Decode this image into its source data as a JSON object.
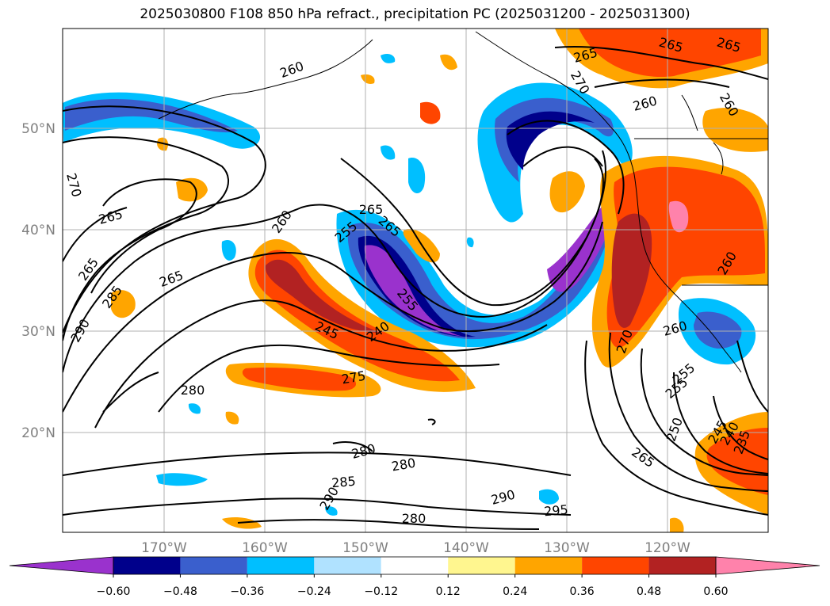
{
  "title": "2025030800 F108 850 hPa refract., precipitation PC (2025031200 - 2025031300)",
  "map": {
    "lat_ticks": [
      "50°N",
      "40°N",
      "30°N",
      "20°N"
    ],
    "lon_ticks": [
      "170°W",
      "160°W",
      "150°W",
      "140°W",
      "130°W",
      "120°W"
    ],
    "tick_color": "#808080",
    "contour_labels": [
      {
        "t": "265"
      },
      {
        "t": "265"
      },
      {
        "t": "265"
      },
      {
        "t": "260"
      },
      {
        "t": "260"
      },
      {
        "t": "260"
      },
      {
        "t": "270"
      },
      {
        "t": "265"
      },
      {
        "t": "265"
      },
      {
        "t": "285"
      },
      {
        "t": "290"
      },
      {
        "t": "265"
      },
      {
        "t": "260"
      },
      {
        "t": "255"
      },
      {
        "t": "265"
      },
      {
        "t": "255"
      },
      {
        "t": "245"
      },
      {
        "t": "240"
      },
      {
        "t": "275"
      },
      {
        "t": "280"
      },
      {
        "t": "280"
      },
      {
        "t": "280"
      },
      {
        "t": "285"
      },
      {
        "t": "290"
      },
      {
        "t": "290"
      },
      {
        "t": "295"
      },
      {
        "t": "280"
      },
      {
        "t": "270"
      },
      {
        "t": "260"
      },
      {
        "t": "255"
      },
      {
        "t": "255"
      },
      {
        "t": "250"
      },
      {
        "t": "245"
      },
      {
        "t": "240"
      },
      {
        "t": "235"
      },
      {
        "t": "265"
      },
      {
        "t": "270"
      },
      {
        "t": "260"
      },
      {
        "t": "265"
      }
    ]
  },
  "colorbar": {
    "colors": [
      "#9a32cd",
      "#00008b",
      "#3a5fcd",
      "#00bfff",
      "#b0e2ff",
      "#ffffff",
      "#fff68f",
      "#ffa500",
      "#ff4500",
      "#b22222",
      "#ff82ab"
    ],
    "tick_labels": [
      "−0.60",
      "−0.48",
      "−0.36",
      "−0.24",
      "−0.12",
      "0.12",
      "0.24",
      "0.36",
      "0.48",
      "0.60"
    ]
  }
}
